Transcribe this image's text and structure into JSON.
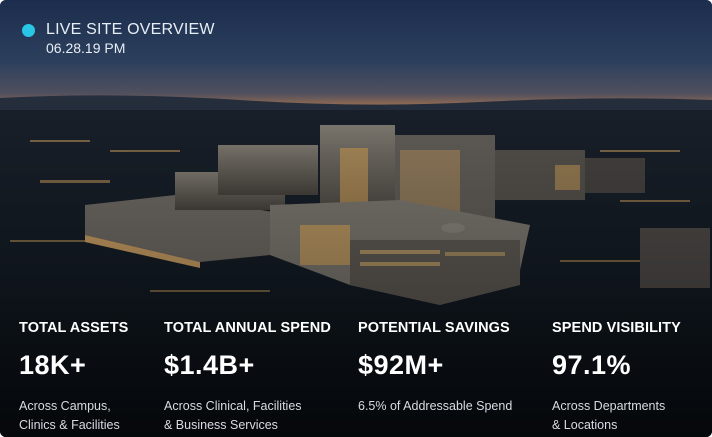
{
  "header": {
    "title": "LIVE SITE OVERVIEW",
    "timestamp": "06.28.19 PM"
  },
  "stats": [
    {
      "label": "TOTAL ASSETS",
      "value": "18K+",
      "description": [
        "Across Campus,",
        "Clinics & Facilities"
      ]
    },
    {
      "label": "TOTAL ANNUAL SPEND",
      "value": "$1.4B+",
      "description": [
        "Across Clinical, Facilities",
        "& Business Services"
      ]
    },
    {
      "label": "POTENTIAL SAVINGS",
      "value": "$92M+",
      "description": [
        "6.5% of Addressable Spend"
      ]
    },
    {
      "label": "SPEND VISIBILITY",
      "value": "97.1%",
      "description": [
        "Across Departments",
        "& Locations"
      ]
    }
  ]
}
